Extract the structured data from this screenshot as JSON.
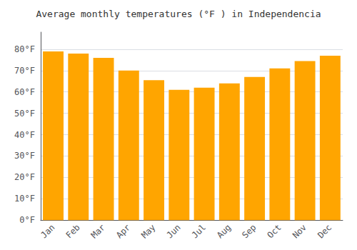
{
  "chart_data": {
    "type": "bar",
    "title": "Average monthly temperatures (°F ) in Independencia",
    "categories": [
      "Jan",
      "Feb",
      "Mar",
      "Apr",
      "May",
      "Jun",
      "Jul",
      "Aug",
      "Sep",
      "Oct",
      "Nov",
      "Dec"
    ],
    "values": [
      79,
      78,
      76,
      70,
      65.5,
      61,
      62,
      64,
      67,
      71,
      74.5,
      77
    ],
    "color": "#FFA500",
    "ylim": [
      0,
      88
    ],
    "yticks": [
      {
        "value": 0,
        "label": "0°F"
      },
      {
        "value": 10,
        "label": "10°F"
      },
      {
        "value": 20,
        "label": "20°F"
      },
      {
        "value": 30,
        "label": "30°F"
      },
      {
        "value": 40,
        "label": "40°F"
      },
      {
        "value": 50,
        "label": "50°F"
      },
      {
        "value": 60,
        "label": "60°F"
      },
      {
        "value": 70,
        "label": "70°F"
      },
      {
        "value": 80,
        "label": "80°F"
      }
    ],
    "grid": true
  }
}
